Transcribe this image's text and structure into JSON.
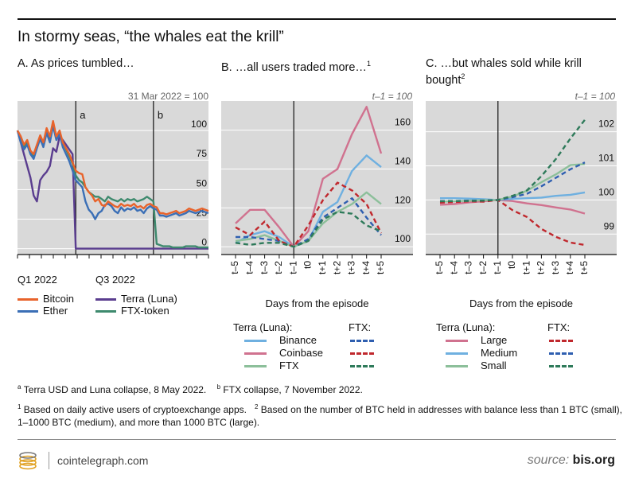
{
  "title": "In stormy seas, “the whales eat the krill”",
  "panels": {
    "a": {
      "title": "A. As prices tumbled…",
      "subtitle": "31 Mar 2022 = 100"
    },
    "b": {
      "title": "B. …all users traded more…",
      "title_sup": "1",
      "subtitle": "t–1 = 100"
    },
    "c": {
      "title_line1": "C. …but whales sold while krill",
      "title_line2": "bought",
      "title_sup": "2",
      "subtitle": "t–1 = 100"
    }
  },
  "legend_a": [
    {
      "label": "Bitcoin",
      "color": "#e8632b"
    },
    {
      "label": "Ether",
      "color": "#3b6fb6"
    },
    {
      "label": "Terra (Luna)",
      "color": "#5a3d8f"
    },
    {
      "label": "FTX-token",
      "color": "#3e8a6e"
    }
  ],
  "legend_b": {
    "col1": "Terra (Luna):",
    "col2": "FTX:",
    "items": [
      {
        "label": "Binance",
        "color": "#6fb0e0"
      },
      {
        "label": "Coinbase",
        "color": "#d0728f"
      },
      {
        "label": "FTX",
        "color": "#8cbf9a"
      }
    ],
    "dash_colors": [
      "#2f5fb0",
      "#c0282d",
      "#2e7a5a"
    ]
  },
  "legend_c": {
    "col1": "Terra (Luna):",
    "col2": "FTX:",
    "items": [
      {
        "label": "Large",
        "color": "#d0728f"
      },
      {
        "label": "Medium",
        "color": "#6fb0e0"
      },
      {
        "label": "Small",
        "color": "#8cbf9a"
      }
    ],
    "dash_colors": [
      "#c0282d",
      "#2f5fb0",
      "#2e7a5a"
    ]
  },
  "notes": {
    "a_mark": "a",
    "a_text": "Terra USD and Luna collapse, 8 May 2022.",
    "b_mark": "b",
    "b_text": "FTX collapse, 7 November 2022.",
    "n1_mark": "1",
    "n1_text": "Based on daily active users of cryptoexchange apps.",
    "n2_mark": "2",
    "n2_line1": "Based on the number of BTC held in addresses with balance less than 1 BTC (small),",
    "n2_line2": "1–1000 BTC (medium), and more than 1000 BTC (large)."
  },
  "footer": {
    "brand": "cointelegraph.com",
    "source_label": "source:",
    "source_name": "bis.org"
  },
  "chart_data": [
    {
      "type": "line",
      "title": "A. As prices tumbled…",
      "subtitle": "31 Mar 2022 = 100",
      "x_ticks": [
        "Q1 2022",
        "Q3 2022"
      ],
      "y_ticks": [
        0,
        25,
        50,
        75,
        100
      ],
      "ylim": [
        -5,
        125
      ],
      "event_labels": [
        "a",
        "b"
      ],
      "x_index_range": [
        0,
        59
      ],
      "events_at_index": [
        18,
        42
      ],
      "series": [
        {
          "name": "Bitcoin",
          "color": "#e8632b",
          "values": [
            100,
            95,
            88,
            92,
            83,
            80,
            88,
            96,
            90,
            102,
            95,
            108,
            95,
            100,
            90,
            85,
            80,
            73,
            66,
            64,
            63,
            52,
            48,
            45,
            40,
            42,
            37,
            36,
            40,
            38,
            36,
            35,
            38,
            36,
            37,
            36,
            38,
            35,
            36,
            34,
            37,
            38,
            36,
            35,
            30,
            30,
            29,
            30,
            31,
            32,
            30,
            31,
            32,
            34,
            33,
            32,
            33,
            34,
            33,
            32
          ]
        },
        {
          "name": "Ether",
          "color": "#3b6fb6",
          "values": [
            100,
            90,
            84,
            88,
            80,
            76,
            85,
            93,
            86,
            98,
            90,
            104,
            92,
            97,
            86,
            80,
            74,
            66,
            58,
            55,
            52,
            40,
            33,
            30,
            25,
            30,
            32,
            37,
            38,
            36,
            32,
            30,
            35,
            32,
            34,
            33,
            35,
            32,
            33,
            30,
            34,
            36,
            34,
            33,
            28,
            28,
            27,
            28,
            29,
            30,
            28,
            29,
            30,
            32,
            31,
            30,
            31,
            32,
            31,
            30
          ]
        },
        {
          "name": "Terra (Luna)",
          "color": "#5a3d8f",
          "values": [
            100,
            90,
            80,
            70,
            60,
            45,
            40,
            58,
            62,
            65,
            70,
            85,
            82,
            95,
            92,
            88,
            84,
            80,
            0,
            0,
            0,
            0,
            0,
            0,
            0,
            0,
            0,
            0,
            0,
            0,
            0,
            0,
            0,
            0,
            0,
            0,
            0,
            0,
            0,
            0,
            0,
            0,
            0,
            0,
            0,
            0,
            0,
            0,
            0,
            0,
            0,
            0,
            0,
            0,
            0,
            0,
            0,
            0,
            0,
            0
          ]
        },
        {
          "name": "FTX-token",
          "color": "#3e8a6e",
          "values": [
            100,
            93,
            86,
            90,
            82,
            78,
            86,
            94,
            88,
            100,
            94,
            106,
            94,
            98,
            90,
            84,
            78,
            72,
            62,
            58,
            56,
            52,
            48,
            46,
            44,
            44,
            42,
            40,
            44,
            42,
            41,
            40,
            42,
            40,
            42,
            41,
            42,
            40,
            41,
            42,
            44,
            42,
            40,
            4,
            3,
            2,
            2,
            2,
            1,
            1,
            1,
            1,
            2,
            2,
            2,
            2,
            1,
            1,
            1,
            1
          ]
        }
      ]
    },
    {
      "type": "line",
      "title": "B. …all users traded more…",
      "subtitle": "t–1 = 100",
      "categories": [
        "t–5",
        "t–4",
        "t–3",
        "t–2",
        "t–1",
        "t0",
        "t+1",
        "t+2",
        "t+3",
        "t+4",
        "t+5"
      ],
      "xlabel": "Days from the episode",
      "y_ticks": [
        100,
        120,
        140,
        160
      ],
      "ylim": [
        96,
        175
      ],
      "series": [
        {
          "name": "Binance (Terra)",
          "style": "solid",
          "color": "#6fb0e0",
          "values": [
            102,
            106,
            108,
            105,
            100,
            103,
            118,
            123,
            139,
            147,
            141
          ]
        },
        {
          "name": "Coinbase (Terra)",
          "style": "solid",
          "color": "#d0728f",
          "values": [
            112,
            119,
            119,
            110,
            100,
            108,
            135,
            140,
            158,
            172,
            148
          ]
        },
        {
          "name": "FTX (Terra)",
          "style": "solid",
          "color": "#8cbf9a",
          "values": [
            103,
            104,
            106,
            103,
            100,
            103,
            112,
            118,
            122,
            128,
            122
          ]
        },
        {
          "name": "Binance (FTX)",
          "style": "dashed",
          "color": "#2f5fb0",
          "values": [
            105,
            105,
            104,
            103,
            100,
            104,
            115,
            120,
            125,
            115,
            106
          ]
        },
        {
          "name": "Coinbase (FTX)",
          "style": "dashed",
          "color": "#c0282d",
          "values": [
            110,
            106,
            113,
            103,
            100,
            111,
            124,
            133,
            129,
            122,
            107
          ]
        },
        {
          "name": "FTX (FTX)",
          "style": "dashed",
          "color": "#2e7a5a",
          "values": [
            102,
            101,
            102,
            102,
            100,
            103,
            114,
            118,
            117,
            111,
            108
          ]
        }
      ]
    },
    {
      "type": "line",
      "title": "C. …but whales sold while krill bought",
      "subtitle": "t–1 = 100",
      "categories": [
        "t–5",
        "t–4",
        "t–3",
        "t–2",
        "t–1",
        "t0",
        "t+1",
        "t+2",
        "t+3",
        "t+4",
        "t+5"
      ],
      "xlabel": "Days from the episode",
      "y_ticks": [
        99,
        100,
        101,
        102
      ],
      "ylim": [
        98.4,
        102.9
      ],
      "series": [
        {
          "name": "Large (Terra)",
          "style": "solid",
          "color": "#d0728f",
          "values": [
            99.86,
            99.88,
            99.93,
            99.96,
            100.0,
            99.97,
            99.9,
            99.85,
            99.78,
            99.72,
            99.6
          ]
        },
        {
          "name": "Medium (Terra)",
          "style": "solid",
          "color": "#6fb0e0",
          "values": [
            100.05,
            100.05,
            100.04,
            100.02,
            100.0,
            100.03,
            100.05,
            100.07,
            100.12,
            100.15,
            100.22
          ]
        },
        {
          "name": "Small (Terra)",
          "style": "solid",
          "color": "#8cbf9a",
          "values": [
            99.95,
            99.96,
            99.98,
            99.99,
            100.0,
            100.1,
            100.27,
            100.52,
            100.75,
            101.02,
            101.05
          ]
        },
        {
          "name": "Large (FTX)",
          "style": "dashed",
          "color": "#c0282d",
          "values": [
            99.92,
            99.94,
            99.96,
            99.95,
            100.0,
            99.7,
            99.5,
            99.15,
            98.92,
            98.75,
            98.68
          ]
        },
        {
          "name": "Medium (FTX)",
          "style": "dashed",
          "color": "#2f5fb0",
          "values": [
            99.97,
            99.97,
            99.98,
            99.98,
            100.0,
            100.08,
            100.18,
            100.4,
            100.65,
            100.9,
            101.1
          ]
        },
        {
          "name": "Small (FTX)",
          "style": "dashed",
          "color": "#2e7a5a",
          "values": [
            99.96,
            99.97,
            99.97,
            99.98,
            100.0,
            100.12,
            100.28,
            100.7,
            101.2,
            101.8,
            102.35
          ]
        }
      ]
    }
  ]
}
